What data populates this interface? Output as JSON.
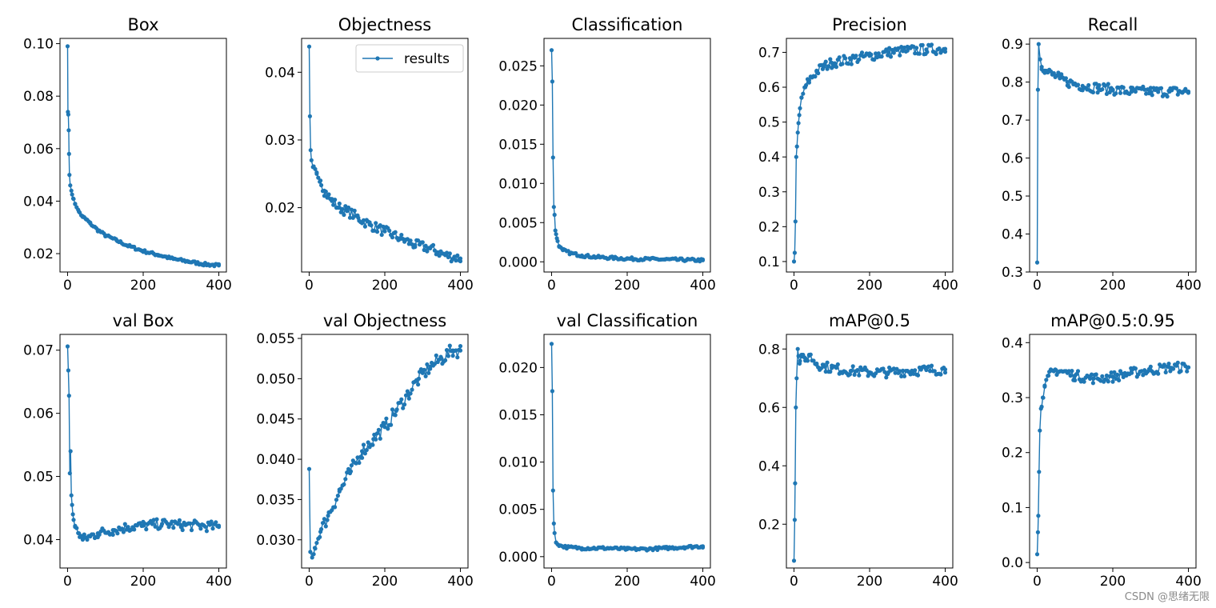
{
  "figure": {
    "watermark": "CSDN @思绪无限",
    "line_color": "#1f77b4"
  },
  "legend": {
    "label": "results"
  },
  "chart_data": [
    {
      "type": "line",
      "title": "Box",
      "x_range": [
        0,
        400
      ],
      "ylim": [
        0.013,
        0.102
      ],
      "xticks": [
        "0",
        "200",
        "400"
      ],
      "yticks": [
        0.02,
        0.04,
        0.06,
        0.08,
        0.1
      ],
      "ytick_labels": [
        "0.02",
        "0.04",
        "0.06",
        "0.08",
        "0.10"
      ],
      "series": [
        {
          "name": "results",
          "points": [
            [
              0,
              0.099
            ],
            [
              1,
              0.074
            ],
            [
              2,
              0.073
            ],
            [
              3,
              0.067
            ],
            [
              4,
              0.058
            ],
            [
              5,
              0.05
            ],
            [
              7,
              0.046
            ],
            [
              10,
              0.044
            ],
            [
              15,
              0.041
            ],
            [
              20,
              0.039
            ],
            [
              30,
              0.036
            ],
            [
              40,
              0.034
            ],
            [
              50,
              0.033
            ],
            [
              60,
              0.0315
            ],
            [
              80,
              0.029
            ],
            [
              100,
              0.027
            ],
            [
              130,
              0.025
            ],
            [
              160,
              0.023
            ],
            [
              200,
              0.021
            ],
            [
              240,
              0.0195
            ],
            [
              280,
              0.018
            ],
            [
              320,
              0.017
            ],
            [
              360,
              0.016
            ],
            [
              400,
              0.0155
            ]
          ]
        }
      ]
    },
    {
      "type": "line",
      "title": "Objectness",
      "x_range": [
        0,
        400
      ],
      "ylim": [
        0.0105,
        0.045
      ],
      "xticks": [
        "0",
        "200",
        "400"
      ],
      "yticks": [
        0.02,
        0.03,
        0.04
      ],
      "ytick_labels": [
        "0.02",
        "0.03",
        "0.04"
      ],
      "legend": "top-right",
      "series": [
        {
          "name": "results",
          "points": [
            [
              0,
              0.0438
            ],
            [
              2,
              0.0335
            ],
            [
              4,
              0.0285
            ],
            [
              6,
              0.027
            ],
            [
              10,
              0.026
            ],
            [
              20,
              0.025
            ],
            [
              30,
              0.024
            ],
            [
              40,
              0.0225
            ],
            [
              60,
              0.021
            ],
            [
              80,
              0.02
            ],
            [
              100,
              0.0195
            ],
            [
              130,
              0.0185
            ],
            [
              160,
              0.0175
            ],
            [
              200,
              0.0165
            ],
            [
              240,
              0.0155
            ],
            [
              280,
              0.0145
            ],
            [
              320,
              0.014
            ],
            [
              360,
              0.013
            ],
            [
              400,
              0.0125
            ]
          ]
        }
      ]
    },
    {
      "type": "line",
      "title": "Classification",
      "x_range": [
        0,
        400
      ],
      "ylim": [
        -0.0013,
        0.0285
      ],
      "xticks": [
        "0",
        "200",
        "400"
      ],
      "yticks": [
        0,
        0.005,
        0.01,
        0.015,
        0.02,
        0.025
      ],
      "ytick_labels": [
        "0.000",
        "0.005",
        "0.010",
        "0.015",
        "0.020",
        "0.025"
      ],
      "series": [
        {
          "name": "results",
          "points": [
            [
              0,
              0.027
            ],
            [
              2,
              0.023
            ],
            [
              4,
              0.0133
            ],
            [
              6,
              0.007
            ],
            [
              8,
              0.006
            ],
            [
              10,
              0.004
            ],
            [
              14,
              0.003
            ],
            [
              20,
              0.002
            ],
            [
              30,
              0.0015
            ],
            [
              50,
              0.0011
            ],
            [
              80,
              0.0008
            ],
            [
              120,
              0.0006
            ],
            [
              200,
              0.0004
            ],
            [
              300,
              0.0003
            ],
            [
              400,
              0.0002
            ]
          ]
        }
      ]
    },
    {
      "type": "line",
      "title": "Precision",
      "x_range": [
        0,
        400
      ],
      "ylim": [
        0.07,
        0.74
      ],
      "xticks": [
        "0",
        "200",
        "400"
      ],
      "yticks": [
        0.1,
        0.2,
        0.3,
        0.4,
        0.5,
        0.6,
        0.7
      ],
      "ytick_labels": [
        "0.1",
        "0.2",
        "0.3",
        "0.4",
        "0.5",
        "0.6",
        "0.7"
      ],
      "series": [
        {
          "name": "results",
          "points": [
            [
              0,
              0.1
            ],
            [
              2,
              0.125
            ],
            [
              4,
              0.215
            ],
            [
              6,
              0.4
            ],
            [
              8,
              0.43
            ],
            [
              10,
              0.47
            ],
            [
              14,
              0.52
            ],
            [
              20,
              0.57
            ],
            [
              30,
              0.6
            ],
            [
              40,
              0.62
            ],
            [
              60,
              0.645
            ],
            [
              80,
              0.66
            ],
            [
              100,
              0.67
            ],
            [
              150,
              0.68
            ],
            [
              200,
              0.69
            ],
            [
              250,
              0.7
            ],
            [
              300,
              0.705
            ],
            [
              350,
              0.708
            ],
            [
              400,
              0.71
            ]
          ]
        }
      ]
    },
    {
      "type": "line",
      "title": "Recall",
      "x_range": [
        0,
        400
      ],
      "ylim": [
        0.3,
        0.915
      ],
      "xticks": [
        "0",
        "200",
        "400"
      ],
      "yticks": [
        0.3,
        0.4,
        0.5,
        0.6,
        0.7,
        0.8,
        0.9
      ],
      "ytick_labels": [
        "0.3",
        "0.4",
        "0.5",
        "0.6",
        "0.7",
        "0.8",
        "0.9"
      ],
      "series": [
        {
          "name": "results",
          "points": [
            [
              0,
              0.325
            ],
            [
              2,
              0.78
            ],
            [
              4,
              0.9
            ],
            [
              8,
              0.86
            ],
            [
              12,
              0.84
            ],
            [
              20,
              0.83
            ],
            [
              40,
              0.82
            ],
            [
              60,
              0.81
            ],
            [
              80,
              0.8
            ],
            [
              120,
              0.79
            ],
            [
              160,
              0.785
            ],
            [
              200,
              0.78
            ],
            [
              250,
              0.775
            ],
            [
              300,
              0.775
            ],
            [
              350,
              0.775
            ],
            [
              400,
              0.775
            ]
          ]
        }
      ]
    },
    {
      "type": "line",
      "title": "val Box",
      "x_range": [
        0,
        400
      ],
      "ylim": [
        0.0355,
        0.0725
      ],
      "xticks": [
        "0",
        "200",
        "400"
      ],
      "yticks": [
        0.04,
        0.05,
        0.06,
        0.07
      ],
      "ytick_labels": [
        "0.04",
        "0.05",
        "0.06",
        "0.07"
      ],
      "series": [
        {
          "name": "results",
          "points": [
            [
              0,
              0.0706
            ],
            [
              2,
              0.0668
            ],
            [
              4,
              0.0628
            ],
            [
              6,
              0.0505
            ],
            [
              8,
              0.054
            ],
            [
              10,
              0.047
            ],
            [
              14,
              0.044
            ],
            [
              20,
              0.042
            ],
            [
              30,
              0.041
            ],
            [
              40,
              0.04
            ],
            [
              60,
              0.0405
            ],
            [
              80,
              0.041
            ],
            [
              120,
              0.0415
            ],
            [
              160,
              0.042
            ],
            [
              200,
              0.0422
            ],
            [
              250,
              0.0425
            ],
            [
              300,
              0.0423
            ],
            [
              350,
              0.0422
            ],
            [
              400,
              0.042
            ]
          ]
        }
      ]
    },
    {
      "type": "line",
      "title": "val Objectness",
      "x_range": [
        0,
        400
      ],
      "ylim": [
        0.0265,
        0.0555
      ],
      "xticks": [
        "0",
        "200",
        "400"
      ],
      "yticks": [
        0.03,
        0.035,
        0.04,
        0.045,
        0.05,
        0.055
      ],
      "ytick_labels": [
        "0.030",
        "0.035",
        "0.040",
        "0.045",
        "0.050",
        "0.055"
      ],
      "series": [
        {
          "name": "results",
          "points": [
            [
              0,
              0.0388
            ],
            [
              3,
              0.0285
            ],
            [
              8,
              0.0278
            ],
            [
              15,
              0.029
            ],
            [
              30,
              0.031
            ],
            [
              50,
              0.033
            ],
            [
              80,
              0.036
            ],
            [
              110,
              0.0385
            ],
            [
              140,
              0.041
            ],
            [
              170,
              0.0425
            ],
            [
              200,
              0.044
            ],
            [
              230,
              0.046
            ],
            [
              260,
              0.048
            ],
            [
              290,
              0.05
            ],
            [
              320,
              0.0515
            ],
            [
              350,
              0.0525
            ],
            [
              380,
              0.0535
            ],
            [
              400,
              0.0535
            ]
          ]
        }
      ]
    },
    {
      "type": "line",
      "title": "val Classification",
      "x_range": [
        0,
        400
      ],
      "ylim": [
        -0.0012,
        0.0235
      ],
      "xticks": [
        "0",
        "200",
        "400"
      ],
      "yticks": [
        0,
        0.005,
        0.01,
        0.015,
        0.02
      ],
      "ytick_labels": [
        "0.000",
        "0.005",
        "0.010",
        "0.015",
        "0.020"
      ],
      "series": [
        {
          "name": "results",
          "points": [
            [
              0,
              0.0225
            ],
            [
              2,
              0.0175
            ],
            [
              4,
              0.007
            ],
            [
              6,
              0.0035
            ],
            [
              8,
              0.0025
            ],
            [
              12,
              0.0015
            ],
            [
              20,
              0.0012
            ],
            [
              40,
              0.001
            ],
            [
              80,
              0.0009
            ],
            [
              150,
              0.0009
            ],
            [
              200,
              0.0008
            ],
            [
              250,
              0.0008
            ],
            [
              300,
              0.0009
            ],
            [
              350,
              0.001
            ],
            [
              400,
              0.0011
            ]
          ]
        }
      ]
    },
    {
      "type": "line",
      "title": "mAP@0.5",
      "x_range": [
        0,
        400
      ],
      "ylim": [
        0.05,
        0.85
      ],
      "xticks": [
        "0",
        "200",
        "400"
      ],
      "yticks": [
        0.2,
        0.4,
        0.6,
        0.8
      ],
      "ytick_labels": [
        "0.2",
        "0.4",
        "0.6",
        "0.8"
      ],
      "series": [
        {
          "name": "results",
          "points": [
            [
              0,
              0.075
            ],
            [
              2,
              0.215
            ],
            [
              3,
              0.34
            ],
            [
              5,
              0.6
            ],
            [
              7,
              0.7
            ],
            [
              10,
              0.8
            ],
            [
              15,
              0.75
            ],
            [
              20,
              0.78
            ],
            [
              30,
              0.76
            ],
            [
              40,
              0.78
            ],
            [
              60,
              0.75
            ],
            [
              80,
              0.74
            ],
            [
              100,
              0.735
            ],
            [
              150,
              0.725
            ],
            [
              200,
              0.72
            ],
            [
              250,
              0.72
            ],
            [
              300,
              0.725
            ],
            [
              350,
              0.728
            ],
            [
              400,
              0.73
            ]
          ]
        }
      ]
    },
    {
      "type": "line",
      "title": "mAP@0.5:0.95",
      "x_range": [
        0,
        400
      ],
      "ylim": [
        -0.01,
        0.415
      ],
      "xticks": [
        "0",
        "200",
        "400"
      ],
      "yticks": [
        0,
        0.1,
        0.2,
        0.3,
        0.4
      ],
      "ytick_labels": [
        "0.0",
        "0.1",
        "0.2",
        "0.3",
        "0.4"
      ],
      "series": [
        {
          "name": "results",
          "points": [
            [
              0,
              0.015
            ],
            [
              2,
              0.055
            ],
            [
              3,
              0.085
            ],
            [
              5,
              0.165
            ],
            [
              7,
              0.24
            ],
            [
              10,
              0.28
            ],
            [
              15,
              0.3
            ],
            [
              20,
              0.32
            ],
            [
              30,
              0.34
            ],
            [
              50,
              0.35
            ],
            [
              80,
              0.345
            ],
            [
              100,
              0.34
            ],
            [
              150,
              0.335
            ],
            [
              200,
              0.338
            ],
            [
              250,
              0.345
            ],
            [
              300,
              0.35
            ],
            [
              350,
              0.355
            ],
            [
              400,
              0.355
            ]
          ]
        }
      ]
    }
  ]
}
